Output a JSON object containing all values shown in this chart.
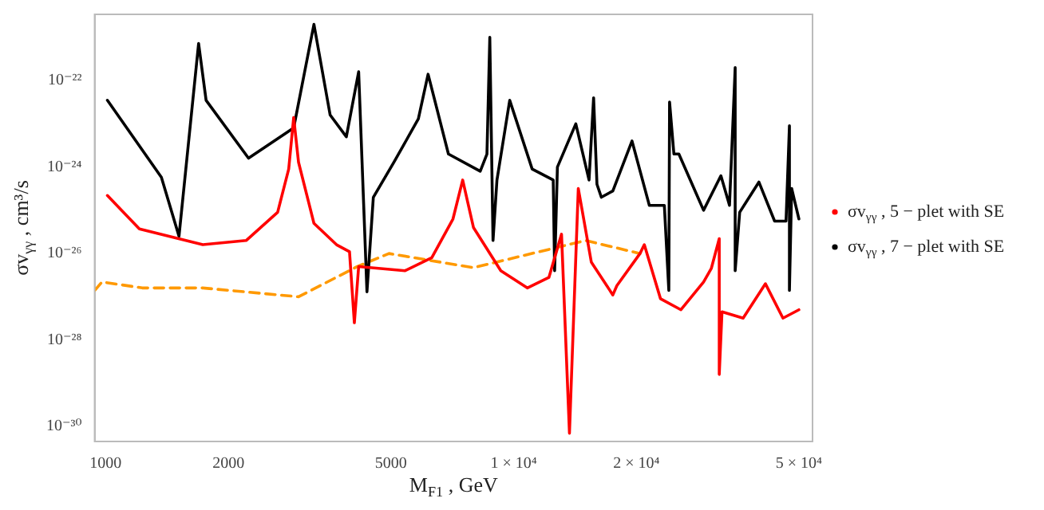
{
  "chart_data": {
    "type": "line",
    "xlabel": "M$_{F1}$ , GeV",
    "ylabel": "σv$_{γγ}$ , cm³/s",
    "log": "xy",
    "grid": false,
    "legend": "right",
    "marker": "none",
    "xlim": [
      940,
      54000
    ],
    "xticks": [
      1000,
      2000,
      5000,
      {
        "value": 10000,
        "label": "1 × 10⁴"
      },
      {
        "value": 20000,
        "label": "2 × 10⁴"
      },
      {
        "value": 50000,
        "label": "5 × 10⁴"
      }
    ],
    "ylim": [
      4.5e-31,
      3.4e-21
    ],
    "yticks": [
      {
        "value": 1e-30,
        "label": "10⁻³⁰"
      },
      {
        "value": 1e-28,
        "label": "10⁻²⁸"
      },
      {
        "value": 1e-26,
        "label": "10⁻²⁶"
      },
      {
        "value": 1e-24,
        "label": "10⁻²⁴"
      },
      {
        "value": 1e-22,
        "label": "10⁻²²"
      }
    ],
    "series": [
      {
        "name": "σv$_{γγ}$ , 5 − plet with SE",
        "color": "#ff0000",
        "line_style": "solid",
        "x": [
          1010,
          1210,
          1730,
          2210,
          2640,
          2810,
          2890,
          2970,
          3240,
          3680,
          3960,
          4070,
          4170,
          5420,
          6300,
          7100,
          7500,
          7970,
          9300,
          10800,
          12200,
          13100,
          13700,
          14400,
          15500,
          17500,
          17900,
          20400,
          20900,
          22900,
          25700,
          29200,
          30500,
          31900,
          31900,
          32400,
          36500,
          41400,
          45700,
          50000
        ],
        "values": [
          2.2e-25,
          3.7e-26,
          1.6e-26,
          2e-26,
          9e-26,
          9e-25,
          1.4e-23,
          1.3e-24,
          5e-26,
          1.6e-26,
          1.1e-26,
          2.5e-28,
          5e-27,
          4e-27,
          8e-27,
          6.3e-26,
          5e-25,
          4e-26,
          4e-27,
          1.6e-27,
          2.8e-27,
          2.8e-26,
          7e-31,
          3.2e-25,
          6.3e-27,
          1.1e-27,
          1.8e-27,
          1e-26,
          1.6e-26,
          9e-28,
          5e-28,
          2.2e-27,
          4.5e-27,
          2.2e-26,
          1.6e-29,
          4.5e-28,
          3.2e-28,
          2e-27,
          3.2e-28,
          5e-28
        ]
      },
      {
        "name": "σv$_{γγ}$ , 7 − plet with SE",
        "color": "#000000",
        "line_style": "solid",
        "x": [
          1010,
          1370,
          1513,
          1690,
          1763,
          2240,
          2890,
          3240,
          3550,
          3890,
          4170,
          4370,
          4530,
          5090,
          5840,
          6170,
          6920,
          8280,
          8600,
          8740,
          8900,
          9100,
          9780,
          11100,
          12500,
          12600,
          12800,
          14200,
          15300,
          15700,
          16000,
          16400,
          17500,
          19500,
          21500,
          23400,
          24000,
          24100,
          24700,
          25400,
          29200,
          32200,
          33800,
          34900,
          34900,
          35800,
          39900,
          43600,
          46500,
          47400,
          47400,
          48000,
          50000
        ],
        "values": [
          3.5e-23,
          5.8e-25,
          2.5e-26,
          7.2e-22,
          3.5e-23,
          1.6e-24,
          8e-24,
          2e-21,
          1.6e-23,
          5e-24,
          1.6e-22,
          1.3e-27,
          2e-25,
          1.3e-24,
          1.3e-23,
          1.4e-22,
          2e-24,
          8e-25,
          2e-24,
          1e-21,
          2e-26,
          5e-25,
          3.5e-23,
          9e-25,
          5e-25,
          4e-27,
          1e-24,
          1e-23,
          5e-25,
          4e-23,
          4e-25,
          2e-25,
          2.8e-25,
          4e-24,
          1.3e-25,
          1.3e-25,
          1.4e-27,
          3.2e-23,
          2e-24,
          2e-24,
          1e-25,
          6.3e-25,
          1.3e-25,
          2e-22,
          4e-27,
          9e-26,
          4.5e-25,
          5.6e-26,
          5.6e-26,
          9e-24,
          1.4e-27,
          3.2e-25,
          6.3e-26
        ]
      },
      {
        "color": "#ff9900",
        "line_style": "dashed",
        "x": [
          940,
          980,
          1230,
          1730,
          2970,
          4140,
          4950,
          7970,
          15000,
          20400
        ],
        "values": [
          1.4e-27,
          2.2e-27,
          1.6e-27,
          1.6e-27,
          1e-27,
          5e-27,
          1e-26,
          4.7e-27,
          2e-26,
          1e-26
        ]
      }
    ]
  }
}
